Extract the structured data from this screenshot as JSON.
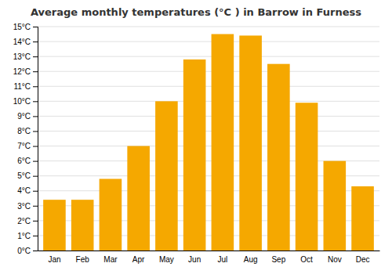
{
  "chart_data": {
    "type": "bar",
    "title": "Average monthly temperatures (°C ) in Barrow in Furness",
    "categories": [
      "Jan",
      "Feb",
      "Mar",
      "Apr",
      "May",
      "Jun",
      "Jul",
      "Aug",
      "Sep",
      "Oct",
      "Nov",
      "Dec"
    ],
    "values": [
      3.4,
      3.4,
      4.8,
      7.0,
      10.0,
      12.8,
      14.5,
      14.4,
      12.5,
      9.9,
      6.0,
      4.3
    ],
    "color": "#F5A800",
    "ylim": [
      0,
      15
    ],
    "yticks": [
      {
        "value": 0,
        "label": "0°C"
      },
      {
        "value": 1,
        "label": "1°C"
      },
      {
        "value": 2,
        "label": "2°C"
      },
      {
        "value": 3,
        "label": "3°C"
      },
      {
        "value": 4,
        "label": "4°C"
      },
      {
        "value": 5,
        "label": "5°C"
      },
      {
        "value": 6,
        "label": "6°C"
      },
      {
        "value": 7,
        "label": "7°C"
      },
      {
        "value": 8,
        "label": "8°C"
      },
      {
        "value": 9,
        "label": "9°C"
      },
      {
        "value": 10,
        "label": "10°C"
      },
      {
        "value": 11,
        "label": "11°C"
      },
      {
        "value": 12,
        "label": "12°C"
      },
      {
        "value": 13,
        "label": "13°C"
      },
      {
        "value": 14,
        "label": "14°C"
      },
      {
        "value": 15,
        "label": "15°C"
      }
    ],
    "grid": true
  }
}
